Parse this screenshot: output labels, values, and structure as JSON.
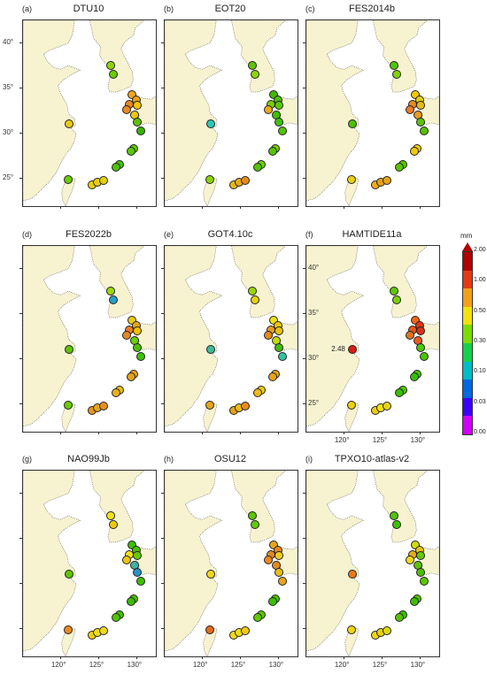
{
  "colors": {
    "land": "#f7f3d0",
    "sea": "#ffffff",
    "coast": "#555555",
    "frame": "#333333"
  },
  "map_data": {
    "extent": {
      "lon": [
        115,
        132.5
      ],
      "lat": [
        22,
        42.5
      ]
    },
    "lon_ticks": [
      120,
      125,
      130
    ],
    "lat_ticks": [
      25,
      30,
      35,
      40
    ],
    "lon_tick_labels": [
      "120°",
      "125°",
      "130°"
    ],
    "lat_tick_labels": [
      "25°",
      "30°",
      "35°",
      "40°"
    ],
    "stations": [
      {
        "lon": 126.6,
        "lat": 37.5
      },
      {
        "lon": 126.9,
        "lat": 36.5
      },
      {
        "lon": 129.4,
        "lat": 34.3
      },
      {
        "lon": 129.9,
        "lat": 33.7
      },
      {
        "lon": 129.0,
        "lat": 33.2
      },
      {
        "lon": 130.1,
        "lat": 33.1
      },
      {
        "lon": 128.7,
        "lat": 32.6
      },
      {
        "lon": 129.7,
        "lat": 32.1
      },
      {
        "lon": 130.0,
        "lat": 31.3
      },
      {
        "lon": 130.5,
        "lat": 30.3
      },
      {
        "lon": 121.1,
        "lat": 31.1
      },
      {
        "lon": 129.6,
        "lat": 28.3
      },
      {
        "lon": 129.2,
        "lat": 28.1
      },
      {
        "lon": 127.7,
        "lat": 26.6
      },
      {
        "lon": 127.3,
        "lat": 26.3
      },
      {
        "lon": 121.0,
        "lat": 24.95
      },
      {
        "lon": 124.1,
        "lat": 24.3
      },
      {
        "lon": 124.8,
        "lat": 24.6
      },
      {
        "lon": 125.6,
        "lat": 24.8
      }
    ]
  },
  "panels": [
    {
      "letter": "(a)",
      "title": "DTU10",
      "colors": [
        "#8fd400",
        "#6ccb00",
        "#f3a31e",
        "#e7a01c",
        "#e58a1e",
        "#f2c800",
        "#e98a23",
        "#f2c800",
        "#5cc300",
        "#35b300",
        "#e8ca12",
        "#61c800",
        "#5ac800",
        "#46c100",
        "#4ec100",
        "#69cd00",
        "#e7d10e",
        "#eccc10",
        "#e4d00e"
      ]
    },
    {
      "letter": "(b)",
      "title": "EOT20",
      "colors": [
        "#5dc400",
        "#8fd400",
        "#3fbb00",
        "#4cc100",
        "#7acd00",
        "#5ac800",
        "#eba91a",
        "#40bf00",
        "#3ec100",
        "#52c300",
        "#2ec8b6",
        "#79cf00",
        "#58c300",
        "#6ccf00",
        "#53c200",
        "#8bd300",
        "#e4b713",
        "#eaa815",
        "#e58b1e"
      ]
    },
    {
      "letter": "(c)",
      "title": "FES2014b",
      "colors": [
        "#4ec600",
        "#85d000",
        "#f2c800",
        "#e3cf0f",
        "#e98a23",
        "#e5bc1a",
        "#ea7a27",
        "#e79c1c",
        "#5cc300",
        "#52c300",
        "#4ec100",
        "#e8cf10",
        "#f2c800",
        "#5cc400",
        "#5ac400",
        "#e8d10e",
        "#eeac15",
        "#e7a018",
        "#e7a31c"
      ]
    },
    {
      "letter": "(d)",
      "title": "FES2022b",
      "colors": [
        "#9ed800",
        "#26a0c8",
        "#e8cc12",
        "#eaa71a",
        "#e87a26",
        "#f1c000",
        "#e28a20",
        "#69cf00",
        "#4cc100",
        "#40be00",
        "#5dc400",
        "#eca11e",
        "#e8a11b",
        "#e4c10e",
        "#e8ae1c",
        "#6ccb00",
        "#e3971e",
        "#e5a520",
        "#e58f23"
      ]
    },
    {
      "letter": "(e)",
      "title": "GOT4.10c",
      "colors": [
        "#9ad500",
        "#e8cf10",
        "#ede010",
        "#e7c60e",
        "#e89a1e",
        "#e8c10e",
        "#e58b1e",
        "#c3dc00",
        "#41bc00",
        "#32c3a0",
        "#3bbb9c",
        "#e6a41c",
        "#e8a21c",
        "#e8cd10",
        "#edb917",
        "#e8a41c",
        "#e7a21c",
        "#e9bd14",
        "#e58b1e"
      ]
    },
    {
      "letter": "(f)",
      "title": "HAMTIDE11a",
      "annotation": "2.48",
      "colors": [
        "#60c600",
        "#7ece00",
        "#f46515",
        "#df3a16",
        "#e8541a",
        "#d8331a",
        "#e0741f",
        "#ee5b21",
        "#4ec600",
        "#47c600",
        "#d81c16",
        "#49c300",
        "#37bf00",
        "#4ec600",
        "#3cbd00",
        "#e8d10e",
        "#edcd10",
        "#f3e212",
        "#e7d21b"
      ]
    },
    {
      "letter": "(g)",
      "title": "NAO99Jb",
      "colors": [
        "#f2e414",
        "#eccb0e",
        "#3abf00",
        "#4cc100",
        "#f2e214",
        "#64ca00",
        "#edc412",
        "#3fb4a0",
        "#2793c6",
        "#3fbe00",
        "#5dc400",
        "#47c100",
        "#3cbc00",
        "#44c000",
        "#52c300",
        "#e88a20",
        "#e7d20e",
        "#f2dc14",
        "#f1d91a"
      ]
    },
    {
      "letter": "(h)",
      "title": "OSU12",
      "colors": [
        "#5dc400",
        "#64ca00",
        "#eda41a",
        "#e8891f",
        "#e38a1f",
        "#f2cc1e",
        "#e98721",
        "#e28a1f",
        "#e6bf12",
        "#e8a41c",
        "#f1d91a",
        "#4cc100",
        "#3ec000",
        "#5ac400",
        "#60c800",
        "#e26c1f",
        "#f1d91a",
        "#f1de15",
        "#f1ca14"
      ]
    },
    {
      "letter": "(i)",
      "title": "TPXO10-atlas-v2",
      "colors": [
        "#52c300",
        "#3fc100",
        "#d0dd00",
        "#e6c512",
        "#e8ac1b",
        "#64c800",
        "#f2da16",
        "#5dc400",
        "#4cc100",
        "#5ac400",
        "#e87a20",
        "#4ec400",
        "#3fbe00",
        "#3fbe00",
        "#59c200",
        "#f0d514",
        "#f0d514",
        "#e8d10e",
        "#dbdc0e"
      ]
    }
  ],
  "legend": {
    "unit": "mm",
    "tick_labels": [
      "0.00",
      "0.03",
      "0.10",
      "0.30",
      "0.50",
      "1.00",
      "2.00"
    ],
    "scale_colors": [
      "#d000ff",
      "#3c00ff",
      "#0068e0",
      "#00bcc8",
      "#14d04a",
      "#7adc00",
      "#f2e20c",
      "#f2a01a",
      "#e43a14",
      "#b00000"
    ]
  }
}
